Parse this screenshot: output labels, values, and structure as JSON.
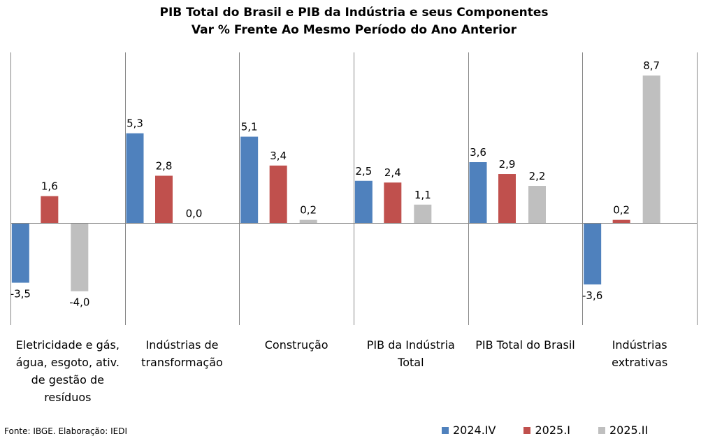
{
  "chart_data": {
    "type": "bar",
    "title_line1": "PIB Total do Brasil e PIB da Indústria e seus Componentes",
    "title_line2": "Var % Frente Ao Mesmo Período do Ano Anterior",
    "categories": [
      "Eletricidade e gás, água, esgoto, ativ. de gestão de resíduos",
      "Indústrias de transformação",
      "Construção",
      "PIB da Indústria Total",
      "PIB Total do Brasil",
      "Indústrias extrativas"
    ],
    "category_lines": [
      [
        "Eletricidade e gás,",
        "água, esgoto, ativ.",
        "de gestão de",
        "resíduos"
      ],
      [
        "Indústrias de",
        "transformação"
      ],
      [
        "Construção"
      ],
      [
        "PIB da Indústria",
        "Total"
      ],
      [
        "PIB Total do Brasil"
      ],
      [
        "Indústrias",
        "extrativas"
      ]
    ],
    "series": [
      {
        "name": "2024.IV",
        "color": "#4f81bd",
        "values": [
          -3.5,
          5.3,
          5.1,
          2.5,
          3.6,
          -3.6
        ]
      },
      {
        "name": "2025.I",
        "color": "#c0504d",
        "values": [
          1.6,
          2.8,
          3.4,
          2.4,
          2.9,
          0.2
        ]
      },
      {
        "name": "2025.II",
        "color": "#bfbfbf",
        "values": [
          -4.0,
          0.0,
          0.2,
          1.1,
          2.2,
          8.7
        ]
      }
    ],
    "value_labels": [
      [
        "-3,5",
        "5,3",
        "5,1",
        "2,5",
        "3,6",
        "-3,6"
      ],
      [
        "1,6",
        "2,8",
        "3,4",
        "2,4",
        "2,9",
        "0,2"
      ],
      [
        "-4,0",
        "0,0",
        "0,2",
        "1,1",
        "2,2",
        "8,7"
      ]
    ],
    "legend_position": "bottom-right",
    "grid": false,
    "source": "Fonte: IBGE. Elaboração: IEDI"
  }
}
